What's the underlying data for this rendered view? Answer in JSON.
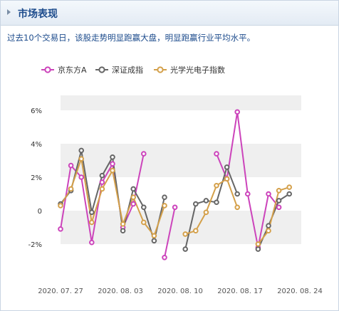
{
  "header": {
    "title": "市场表现"
  },
  "summary": "过去10个交易日，该股走势明显跑赢大盘，明显跑赢行业平均水平。",
  "colors": {
    "series": [
      "#cc44bb",
      "#666666",
      "#d4a04a"
    ],
    "band": "#efefef",
    "title": "#1c4b8c"
  },
  "chart_data": {
    "type": "line",
    "legend_position": "top-left",
    "grid": "alternating horizontal bands",
    "ylim": [
      -3,
      7
    ],
    "y_ticks": [
      6,
      4,
      2,
      0,
      -2
    ],
    "y_tick_labels": [
      "6%",
      "4%",
      "2%",
      "0",
      "-2%"
    ],
    "x_tick_labels": [
      "2020. 07. 27",
      "2020. 08. 03",
      "2020. 08. 10",
      "2020. 08. 17",
      "2020. 08. 24"
    ],
    "series": [
      {
        "name": "京东方A",
        "values": [
          -1.1,
          2.7,
          2.0,
          -1.9,
          1.7,
          2.8,
          -1.0,
          0.4,
          3.4,
          null,
          -2.8,
          0.2,
          null,
          null,
          null,
          3.4,
          1.9,
          5.9,
          1.0,
          -2.2,
          1.0,
          0.2,
          null,
          null
        ]
      },
      {
        "name": "深证成指",
        "values": [
          0.4,
          1.2,
          3.6,
          -0.1,
          2.1,
          3.2,
          -1.2,
          1.3,
          0.2,
          -1.8,
          0.8,
          null,
          -2.3,
          0.4,
          0.6,
          0.5,
          2.6,
          1.0,
          null,
          -2.3,
          -0.9,
          0.6,
          1.0,
          null
        ]
      },
      {
        "name": "光学光电子指数",
        "values": [
          0.3,
          1.3,
          3.1,
          -0.7,
          1.3,
          2.4,
          -0.8,
          0.8,
          -0.7,
          -1.5,
          0.3,
          null,
          -1.4,
          -1.2,
          -0.1,
          1.5,
          1.9,
          0.2,
          null,
          -2.0,
          -1.2,
          1.2,
          1.4,
          null
        ]
      }
    ]
  }
}
